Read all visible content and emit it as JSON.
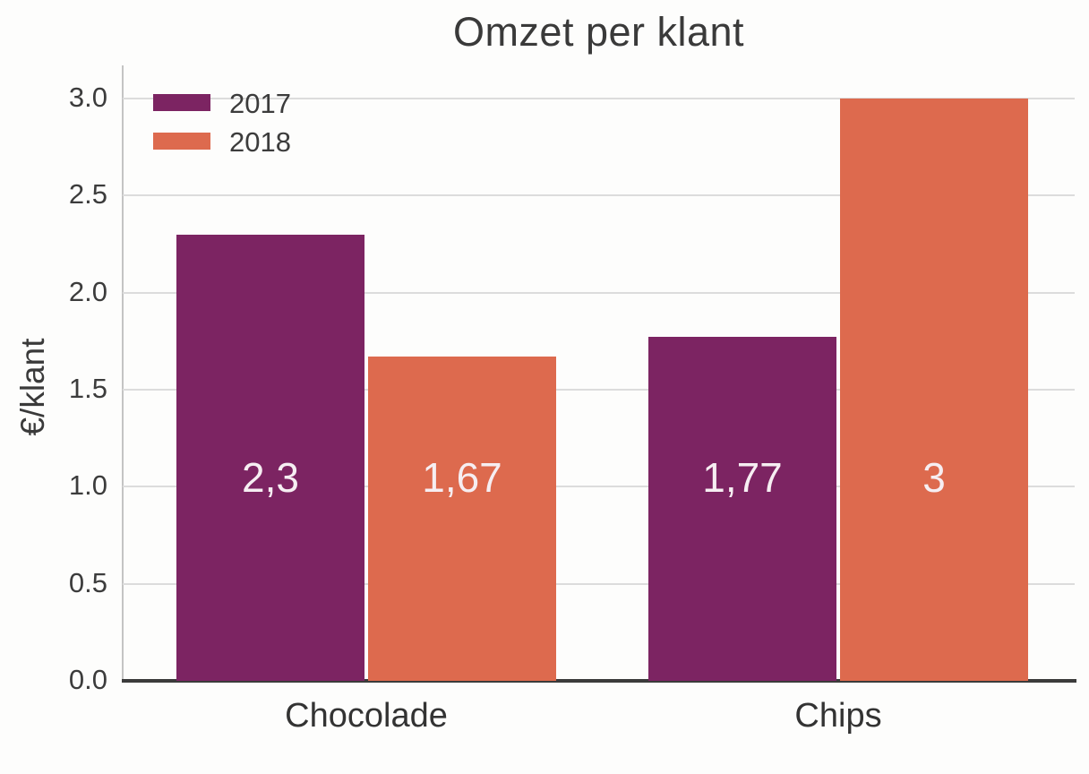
{
  "title": "Omzet per klant",
  "chart_data": {
    "type": "bar",
    "title": "Omzet per klant",
    "ylabel": "€/klant",
    "xlabel": "",
    "categories": [
      "Chocolade",
      "Chips"
    ],
    "series": [
      {
        "name": "2017",
        "color": "#7c2462",
        "values": [
          2.3,
          1.77
        ],
        "value_labels": [
          "2,3",
          "1,77"
        ]
      },
      {
        "name": "2018",
        "color": "#dd6a4e",
        "values": [
          1.67,
          3
        ],
        "value_labels": [
          "1,67",
          "3"
        ]
      }
    ],
    "yticks": [
      0.0,
      0.5,
      1.0,
      1.5,
      2.0,
      2.5,
      3.0
    ],
    "ytick_labels": [
      "0.0",
      "0.5",
      "1.0",
      "1.5",
      "2.0",
      "2.5",
      "3.0"
    ],
    "ylim": [
      0,
      3.16
    ],
    "grid": true,
    "legend_position": "upper left",
    "colors": {
      "grid": "#dcdcdc",
      "axis_spine": "#3b3b3b",
      "left_spine": "#c4c4c4",
      "text": "#3a3a3a",
      "bar_value_text": "#f6eef2"
    }
  }
}
